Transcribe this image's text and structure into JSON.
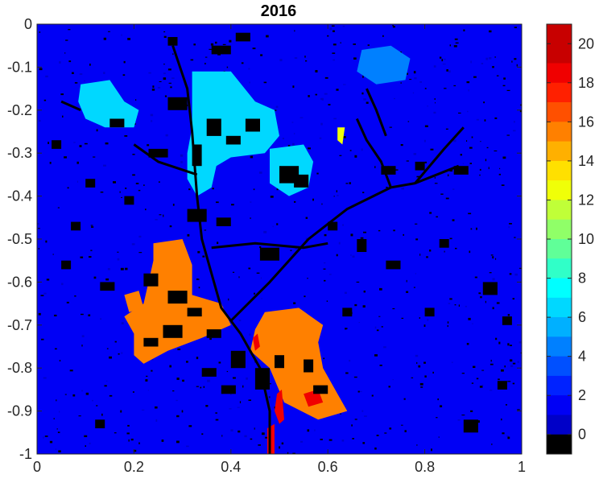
{
  "chart_data": {
    "type": "heatmap",
    "title": "2016",
    "xlabel": "",
    "ylabel": "",
    "xlim": [
      0,
      1
    ],
    "ylim": [
      -1,
      0
    ],
    "x_ticks": [
      "0",
      "0.2",
      "0.4",
      "0.6",
      "0.8",
      "1"
    ],
    "y_ticks": [
      "0",
      "-0.1",
      "-0.2",
      "-0.3",
      "-0.4",
      "-0.5",
      "-0.6",
      "-0.7",
      "-0.8",
      "-0.9",
      "-1"
    ],
    "background_value": 2,
    "colorbar": {
      "range": [
        -1,
        21
      ],
      "tick_labels": [
        "0",
        "2",
        "4",
        "6",
        "8",
        "10",
        "12",
        "14",
        "16",
        "18",
        "20"
      ],
      "levels": [
        {
          "value": 0,
          "color": "#000000"
        },
        {
          "value": 1,
          "color": "#0000c8"
        },
        {
          "value": 2,
          "color": "#0000f5"
        },
        {
          "value": 3,
          "color": "#0022ff"
        },
        {
          "value": 4,
          "color": "#0050ff"
        },
        {
          "value": 5,
          "color": "#0080ff"
        },
        {
          "value": 6,
          "color": "#00b0ff"
        },
        {
          "value": 7,
          "color": "#00d8ff"
        },
        {
          "value": 8,
          "color": "#00ffff"
        },
        {
          "value": 9,
          "color": "#30ffc8"
        },
        {
          "value": 10,
          "color": "#60ff98"
        },
        {
          "value": 11,
          "color": "#90ff68"
        },
        {
          "value": 12,
          "color": "#c0ff38"
        },
        {
          "value": 13,
          "color": "#f0ff08"
        },
        {
          "value": 14,
          "color": "#ffe000"
        },
        {
          "value": 15,
          "color": "#ffb000"
        },
        {
          "value": 16,
          "color": "#ff8000"
        },
        {
          "value": 17,
          "color": "#ff5000"
        },
        {
          "value": 18,
          "color": "#ff2000"
        },
        {
          "value": 19,
          "color": "#f00000"
        },
        {
          "value": 20,
          "color": "#c80000"
        }
      ]
    },
    "regions": [
      {
        "name": "top-left cluster",
        "value": 7,
        "polygon": [
          [
            0.09,
            -0.14
          ],
          [
            0.15,
            -0.13
          ],
          [
            0.18,
            -0.18
          ],
          [
            0.21,
            -0.2
          ],
          [
            0.2,
            -0.24
          ],
          [
            0.14,
            -0.24
          ],
          [
            0.1,
            -0.22
          ],
          [
            0.085,
            -0.18
          ]
        ]
      },
      {
        "name": "top-right cluster",
        "value": 5,
        "polygon": [
          [
            0.67,
            -0.06
          ],
          [
            0.73,
            -0.05
          ],
          [
            0.77,
            -0.08
          ],
          [
            0.76,
            -0.13
          ],
          [
            0.7,
            -0.14
          ],
          [
            0.66,
            -0.11
          ]
        ]
      },
      {
        "name": "upper-middle cluster",
        "value": 7,
        "polygon": [
          [
            0.32,
            -0.11
          ],
          [
            0.4,
            -0.11
          ],
          [
            0.45,
            -0.18
          ],
          [
            0.49,
            -0.2
          ],
          [
            0.5,
            -0.26
          ],
          [
            0.47,
            -0.3
          ],
          [
            0.4,
            -0.31
          ],
          [
            0.37,
            -0.33
          ],
          [
            0.36,
            -0.38
          ],
          [
            0.33,
            -0.4
          ],
          [
            0.31,
            -0.36
          ],
          [
            0.31,
            -0.3
          ],
          [
            0.32,
            -0.24
          ],
          [
            0.32,
            -0.16
          ]
        ]
      },
      {
        "name": "mid-right cluster",
        "value": 7,
        "polygon": [
          [
            0.48,
            -0.29
          ],
          [
            0.55,
            -0.28
          ],
          [
            0.57,
            -0.32
          ],
          [
            0.56,
            -0.38
          ],
          [
            0.52,
            -0.4
          ],
          [
            0.48,
            -0.37
          ]
        ]
      },
      {
        "name": "central-left block",
        "value": 16,
        "polygon": [
          [
            0.24,
            -0.51
          ],
          [
            0.3,
            -0.5
          ],
          [
            0.32,
            -0.56
          ],
          [
            0.32,
            -0.63
          ],
          [
            0.38,
            -0.65
          ],
          [
            0.4,
            -0.7
          ],
          [
            0.34,
            -0.73
          ],
          [
            0.27,
            -0.76
          ],
          [
            0.22,
            -0.79
          ],
          [
            0.2,
            -0.77
          ],
          [
            0.2,
            -0.72
          ],
          [
            0.18,
            -0.68
          ],
          [
            0.22,
            -0.65
          ],
          [
            0.23,
            -0.6
          ],
          [
            0.24,
            -0.55
          ]
        ]
      },
      {
        "name": "central-right block",
        "value": 16,
        "polygon": [
          [
            0.47,
            -0.67
          ],
          [
            0.54,
            -0.66
          ],
          [
            0.59,
            -0.7
          ],
          [
            0.58,
            -0.74
          ],
          [
            0.59,
            -0.8
          ],
          [
            0.62,
            -0.86
          ],
          [
            0.64,
            -0.9
          ],
          [
            0.58,
            -0.92
          ],
          [
            0.51,
            -0.88
          ],
          [
            0.48,
            -0.8
          ],
          [
            0.44,
            -0.76
          ],
          [
            0.45,
            -0.71
          ]
        ]
      },
      {
        "name": "small left blob",
        "value": 16,
        "polygon": [
          [
            0.18,
            -0.63
          ],
          [
            0.21,
            -0.62
          ],
          [
            0.22,
            -0.66
          ],
          [
            0.19,
            -0.67
          ]
        ]
      },
      {
        "name": "red patch center",
        "value": 19,
        "polygon": [
          [
            0.445,
            -0.73
          ],
          [
            0.455,
            -0.72
          ],
          [
            0.46,
            -0.75
          ],
          [
            0.45,
            -0.76
          ]
        ]
      },
      {
        "name": "red patch lower",
        "value": 19,
        "polygon": [
          [
            0.495,
            -0.86
          ],
          [
            0.505,
            -0.85
          ],
          [
            0.51,
            -0.92
          ],
          [
            0.5,
            -0.93
          ],
          [
            0.49,
            -0.9
          ]
        ]
      },
      {
        "name": "red patch bottom",
        "value": 19,
        "polygon": [
          [
            0.475,
            -0.94
          ],
          [
            0.49,
            -0.93
          ],
          [
            0.49,
            -1.0
          ],
          [
            0.475,
            -1.0
          ]
        ]
      },
      {
        "name": "red patch right",
        "value": 19,
        "polygon": [
          [
            0.55,
            -0.86
          ],
          [
            0.58,
            -0.85
          ],
          [
            0.59,
            -0.88
          ],
          [
            0.56,
            -0.89
          ]
        ]
      },
      {
        "name": "small yellow blob",
        "value": 13,
        "polygon": [
          [
            0.62,
            -0.24
          ],
          [
            0.635,
            -0.24
          ],
          [
            0.63,
            -0.28
          ],
          [
            0.62,
            -0.27
          ]
        ]
      }
    ],
    "black_patches": [
      [
        0.15,
        -0.22,
        0.03,
        0.02
      ],
      [
        0.27,
        -0.17,
        0.04,
        0.03
      ],
      [
        0.35,
        -0.22,
        0.03,
        0.04
      ],
      [
        0.39,
        -0.26,
        0.03,
        0.02
      ],
      [
        0.43,
        -0.22,
        0.03,
        0.03
      ],
      [
        0.23,
        -0.29,
        0.04,
        0.02
      ],
      [
        0.32,
        -0.28,
        0.02,
        0.05
      ],
      [
        0.5,
        -0.33,
        0.04,
        0.04
      ],
      [
        0.53,
        -0.35,
        0.03,
        0.03
      ],
      [
        0.71,
        -0.33,
        0.03,
        0.02
      ],
      [
        0.78,
        -0.32,
        0.02,
        0.02
      ],
      [
        0.86,
        -0.33,
        0.03,
        0.02
      ],
      [
        0.31,
        -0.43,
        0.04,
        0.03
      ],
      [
        0.37,
        -0.45,
        0.03,
        0.02
      ],
      [
        0.46,
        -0.52,
        0.04,
        0.03
      ],
      [
        0.13,
        -0.6,
        0.03,
        0.02
      ],
      [
        0.22,
        -0.58,
        0.03,
        0.03
      ],
      [
        0.27,
        -0.62,
        0.04,
        0.03
      ],
      [
        0.31,
        -0.66,
        0.03,
        0.02
      ],
      [
        0.26,
        -0.7,
        0.04,
        0.03
      ],
      [
        0.22,
        -0.73,
        0.03,
        0.02
      ],
      [
        0.35,
        -0.71,
        0.03,
        0.02
      ],
      [
        0.4,
        -0.76,
        0.03,
        0.04
      ],
      [
        0.45,
        -0.8,
        0.03,
        0.05
      ],
      [
        0.49,
        -0.77,
        0.02,
        0.03
      ],
      [
        0.55,
        -0.78,
        0.02,
        0.03
      ],
      [
        0.57,
        -0.84,
        0.03,
        0.02
      ],
      [
        0.34,
        -0.8,
        0.03,
        0.02
      ],
      [
        0.38,
        -0.84,
        0.03,
        0.02
      ],
      [
        0.63,
        -0.66,
        0.02,
        0.02
      ],
      [
        0.8,
        -0.66,
        0.02,
        0.02
      ],
      [
        0.92,
        -0.6,
        0.03,
        0.03
      ],
      [
        0.95,
        -0.83,
        0.02,
        0.02
      ],
      [
        0.88,
        -0.92,
        0.03,
        0.03
      ],
      [
        0.12,
        -0.92,
        0.02,
        0.02
      ],
      [
        0.05,
        -0.55,
        0.02,
        0.02
      ],
      [
        0.83,
        -0.5,
        0.02,
        0.02
      ],
      [
        0.72,
        -0.55,
        0.03,
        0.02
      ],
      [
        0.36,
        -0.05,
        0.04,
        0.02
      ],
      [
        0.41,
        -0.02,
        0.03,
        0.02
      ],
      [
        0.27,
        -0.03,
        0.02,
        0.02
      ],
      [
        0.96,
        -0.68,
        0.02,
        0.02
      ],
      [
        0.6,
        -0.46,
        0.02,
        0.02
      ],
      [
        0.66,
        -0.5,
        0.02,
        0.03
      ],
      [
        0.18,
        -0.4,
        0.02,
        0.02
      ],
      [
        0.1,
        -0.36,
        0.02,
        0.02
      ],
      [
        0.03,
        -0.27,
        0.02,
        0.02
      ],
      [
        0.07,
        -0.46,
        0.02,
        0.02
      ]
    ],
    "black_lines": [
      [
        [
          0.28,
          -0.05
        ],
        [
          0.31,
          -0.15
        ],
        [
          0.32,
          -0.25
        ],
        [
          0.33,
          -0.4
        ],
        [
          0.34,
          -0.5
        ],
        [
          0.36,
          -0.58
        ],
        [
          0.38,
          -0.66
        ],
        [
          0.42,
          -0.72
        ],
        [
          0.46,
          -0.8
        ],
        [
          0.48,
          -0.9
        ],
        [
          0.48,
          -1.0
        ]
      ],
      [
        [
          0.4,
          -0.69
        ],
        [
          0.48,
          -0.6
        ],
        [
          0.56,
          -0.5
        ],
        [
          0.64,
          -0.43
        ],
        [
          0.73,
          -0.38
        ],
        [
          0.78,
          -0.37
        ],
        [
          0.87,
          -0.33
        ]
      ],
      [
        [
          0.78,
          -0.37
        ],
        [
          0.84,
          -0.29
        ],
        [
          0.88,
          -0.24
        ]
      ],
      [
        [
          0.73,
          -0.38
        ],
        [
          0.71,
          -0.32
        ],
        [
          0.68,
          -0.27
        ],
        [
          0.66,
          -0.22
        ]
      ],
      [
        [
          0.2,
          -0.28
        ],
        [
          0.25,
          -0.32
        ],
        [
          0.33,
          -0.35
        ]
      ],
      [
        [
          0.36,
          -0.52
        ],
        [
          0.45,
          -0.51
        ],
        [
          0.55,
          -0.52
        ],
        [
          0.6,
          -0.51
        ]
      ],
      [
        [
          0.05,
          -0.18
        ],
        [
          0.09,
          -0.2
        ]
      ],
      [
        [
          0.68,
          -0.15
        ],
        [
          0.7,
          -0.2
        ],
        [
          0.72,
          -0.26
        ]
      ]
    ]
  }
}
